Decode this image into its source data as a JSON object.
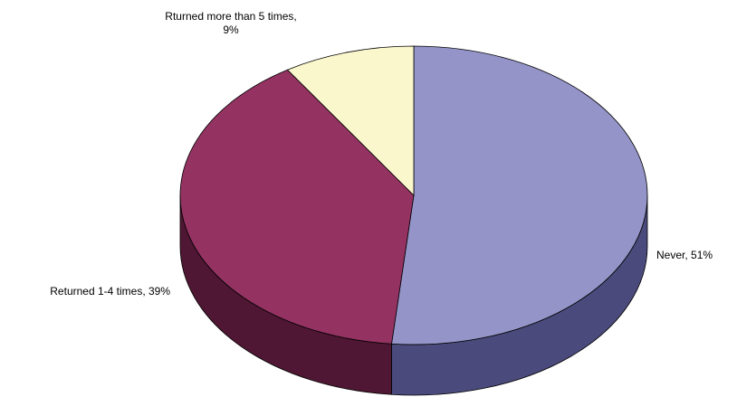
{
  "chart_data": {
    "type": "pie",
    "style": "3d",
    "slices": [
      {
        "label_lines": [
          "Never, 51%"
        ],
        "value": 51,
        "color": "#9494c8",
        "side_color": "#4b4a7c"
      },
      {
        "label_lines": [
          "Returned 1-4 times, 39%"
        ],
        "value": 39,
        "color": "#943262",
        "side_color": "#4f1733"
      },
      {
        "label_lines": [
          "Rturned more than 5 times,",
          "9%"
        ],
        "value": 9,
        "color": "#fbf7cc",
        "side_color": "#b5b18c"
      }
    ]
  }
}
